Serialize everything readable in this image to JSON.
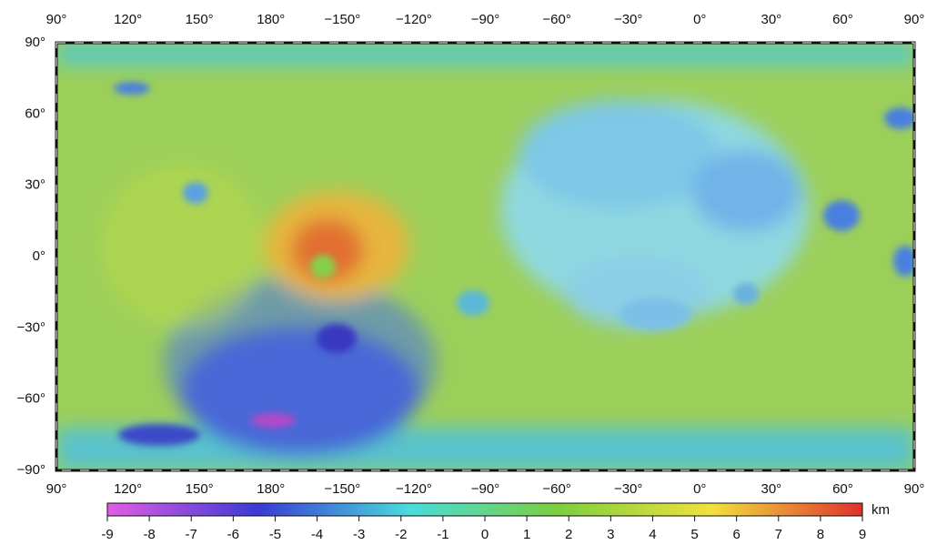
{
  "map": {
    "lon_labels": [
      "90°",
      "120°",
      "150°",
      "180°",
      "−150°",
      "−120°",
      "−90°",
      "−60°",
      "−30°",
      "0°",
      "30°",
      "60°",
      "90°"
    ],
    "lat_labels": [
      "90°",
      "60°",
      "30°",
      "0°",
      "−30°",
      "−60°",
      "−90°"
    ],
    "colorbar": {
      "ticks": [
        -9,
        -8,
        -7,
        -6,
        -5,
        -4,
        -3,
        -2,
        -1,
        0,
        1,
        2,
        3,
        4,
        5,
        6,
        7,
        8,
        9
      ],
      "unit": "km",
      "colors": [
        "#e45ce4",
        "#3a3ad6",
        "#48dcdc",
        "#7ccf3c",
        "#f2e23c",
        "#e0302c"
      ]
    }
  }
}
